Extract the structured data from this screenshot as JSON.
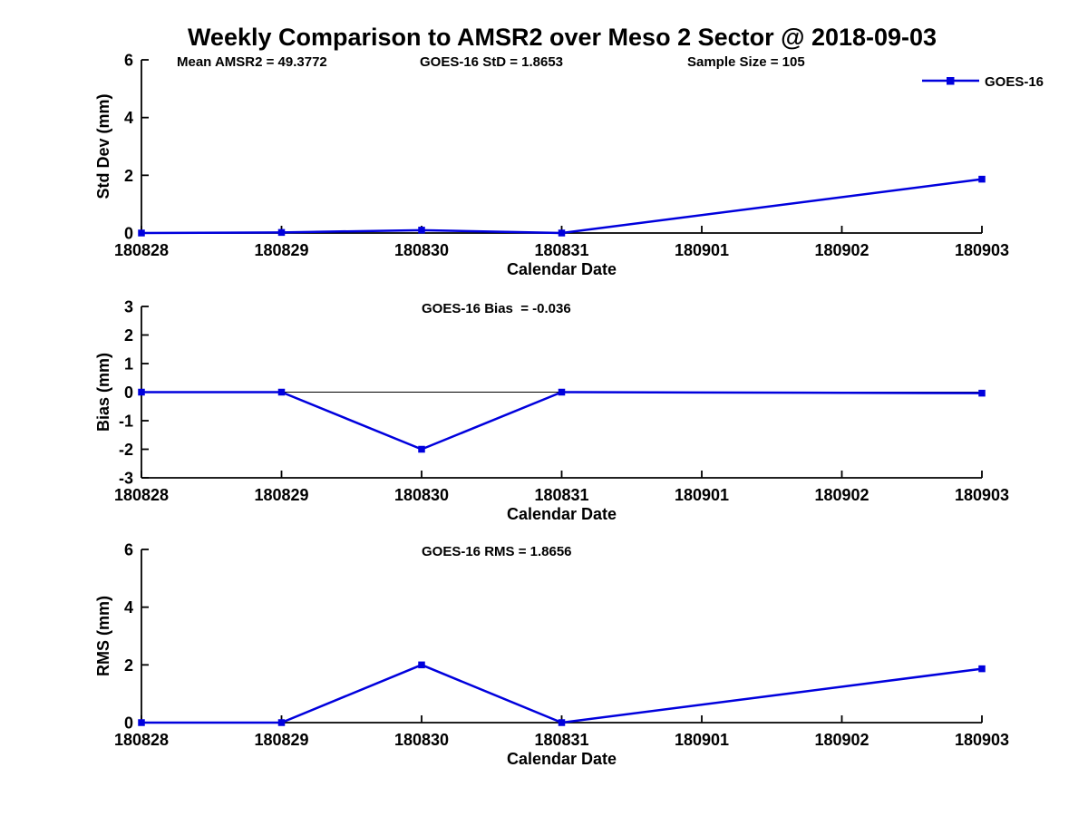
{
  "title": "Weekly Comparison to AMSR2 over Meso 2 Sector @ 2018-09-03",
  "colors": {
    "series": "#0000DD",
    "text": "#000000",
    "axis": "#000000"
  },
  "legend": {
    "label": "GOES-16",
    "marker": "filled-square",
    "position": "top-right"
  },
  "chart_data": [
    {
      "type": "line",
      "panel": "std-dev",
      "annotations": [
        {
          "text": "Mean AMSR2 = 49.3772"
        },
        {
          "text": "GOES-16 StD = 1.8653"
        },
        {
          "text": "Sample Size = 105"
        }
      ],
      "xlabel": "Calendar Date",
      "ylabel": "Std Dev (mm)",
      "categories": [
        "180828",
        "180829",
        "180830",
        "180831",
        "180901",
        "180902",
        "180903"
      ],
      "yticks": [
        0,
        2,
        4,
        6
      ],
      "ylim": [
        0,
        6
      ],
      "grid": false,
      "zero_line": false,
      "series": [
        {
          "name": "GOES-16",
          "points": [
            {
              "x": "180828",
              "y": 0.0
            },
            {
              "x": "180829",
              "y": 0.02
            },
            {
              "x": "180830",
              "y": 0.1
            },
            {
              "x": "180831",
              "y": 0.0
            },
            {
              "x": "180903",
              "y": 1.8653
            }
          ]
        }
      ]
    },
    {
      "type": "line",
      "panel": "bias",
      "annotations": [
        {
          "text": "GOES-16 Bias  = -0.036"
        }
      ],
      "xlabel": "Calendar Date",
      "ylabel": "Bias (mm)",
      "categories": [
        "180828",
        "180829",
        "180830",
        "180831",
        "180901",
        "180902",
        "180903"
      ],
      "yticks": [
        3,
        2,
        1,
        0,
        -1,
        -2,
        -3
      ],
      "ylim": [
        -3,
        3
      ],
      "grid": false,
      "zero_line": true,
      "series": [
        {
          "name": "GOES-16",
          "points": [
            {
              "x": "180828",
              "y": 0.0
            },
            {
              "x": "180829",
              "y": 0.0
            },
            {
              "x": "180830",
              "y": -2.0
            },
            {
              "x": "180831",
              "y": 0.0
            },
            {
              "x": "180903",
              "y": -0.036
            }
          ]
        }
      ]
    },
    {
      "type": "line",
      "panel": "rms",
      "annotations": [
        {
          "text": "GOES-16 RMS = 1.8656"
        }
      ],
      "xlabel": "Calendar Date",
      "ylabel": "RMS (mm)",
      "categories": [
        "180828",
        "180829",
        "180830",
        "180831",
        "180901",
        "180902",
        "180903"
      ],
      "yticks": [
        0,
        2,
        4,
        6
      ],
      "ylim": [
        0,
        6
      ],
      "grid": false,
      "zero_line": false,
      "series": [
        {
          "name": "GOES-16",
          "points": [
            {
              "x": "180828",
              "y": 0.0
            },
            {
              "x": "180829",
              "y": 0.0
            },
            {
              "x": "180830",
              "y": 2.0
            },
            {
              "x": "180831",
              "y": 0.0
            },
            {
              "x": "180903",
              "y": 1.8656
            }
          ]
        }
      ]
    }
  ]
}
